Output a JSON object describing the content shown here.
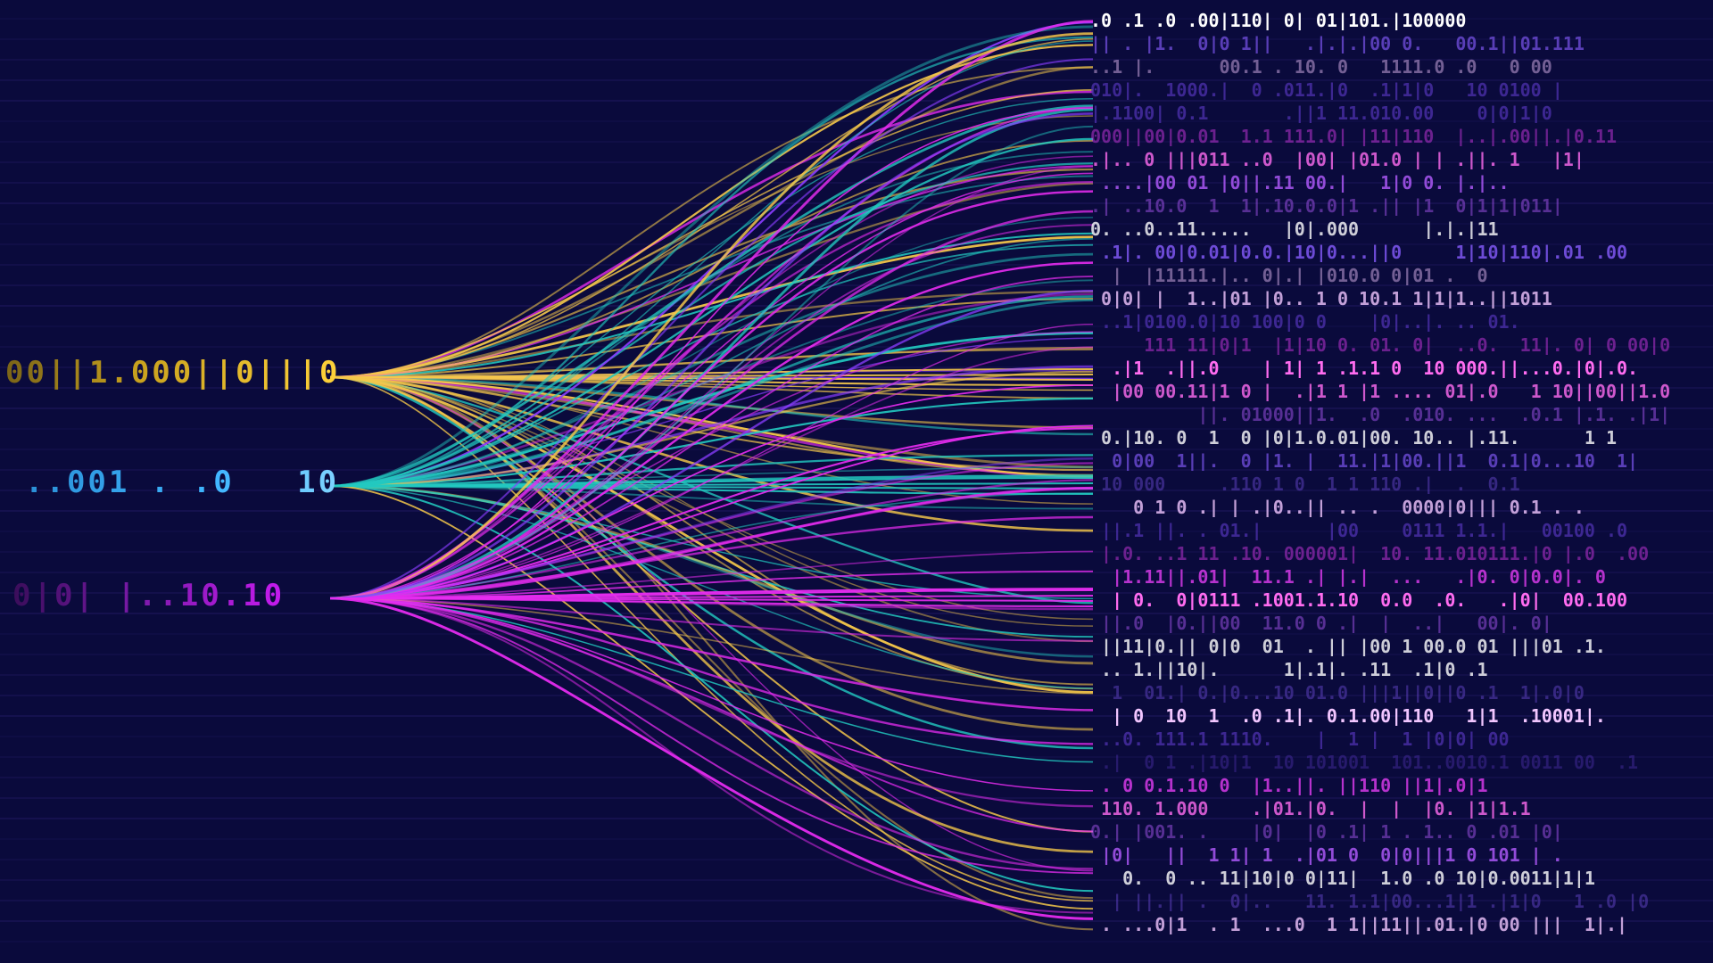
{
  "sources": [
    {
      "key": "yellow",
      "text": "00||1.000||0|||0",
      "color": "#ffd23a"
    },
    {
      "key": "cyan",
      "text": "..001 . .0   10",
      "color": "#3fb6ff"
    },
    {
      "key": "magenta",
      "text": "0|0| |..10.10",
      "color": "#c71bf0"
    }
  ],
  "colors": {
    "background": "#0a0a3c",
    "yellow": "#f5c84a",
    "cyan": "#22c9c0",
    "magenta": "#e62cf0",
    "violet": "#8a3dff"
  },
  "code_rows": [
    ".0 .1 .0 .00|110| 0| 01|101.|100000",
    "|| . |1.  0|0 1||   .|.|.|00 0.   00.1||01.111",
    "..1 |.      00.1 . 10. 0   1111.0 .0   0 00",
    "010|.  1000.|  0 .011.|0  .1|1|0   10 0100 |",
    "|.1100| 0.1       .||1 11.010.00    0|0|1|0",
    "000||00|0.01  1.1 111.0| |11|110  |..|.00||.|0.11",
    ".|.. 0 |||011 ..0  |00| |01.0 | | .||. 1   |1|",
    " ....|00 01 |0||.11 00.|   1|0 0. |.|..",
    ".| ..10.0  1  1|.10.0.0|1 .|| |1  0|1|1|011|",
    "0. ..0..11.....   |0|.000      |.|.|11",
    " .1|. 00|0.01|0.0.|10|0...||0     1|10|110|.01 .00",
    "  |  |11111.|.. 0|.| |010.0 0|01 .  0",
    " 0|0| |  1..|01 |0.. 1 0 10.1 1|1|1..||1011",
    " ..1|0100.0|10 100|0 0    |0|..|. .. 01.",
    "     111 11|0|1  |1|10 0. 01. 0|  ..0.  11|. 0| 0 00|0",
    "  .|1  .||.0    | 1| 1 .1.1 0  10 000.||...0.|0|.0.",
    "  |00 00.11|1 0 |  .|1 1 |1 .... 01|.0   1 10||00||1.0",
    "          ||. 01000||1.  .0  .010. ...  .0.1 |.1. .|1|",
    " 0.|10. 0  1  0 |0|1.0.01|00. 10.. |.11.      1 1",
    "  0|00  1||.  0 |1. |  11.|1|00.||1  0.1|0...10  1|",
    " 10 000     .110 1 0  1 1 110 .|  .  0.1",
    "    0 1 0 .| | .|0..|| .. .  0000|0||| 0.1 . .",
    " ||.1 ||. . 01.|      |00    0111 1.1.|   00100 .0",
    " |.0. ..1 11 .10. 000001|  10. 11.010111.|0 |.0  .00",
    "  |1.11||.01|  11.1 .| |.|  ...   .|0. 0|0.0|. 0",
    "  | 0.  0|0111 .1001.1.10  0.0  .0.   .|0|  00.100",
    " ||.0  |0.||00  11.0 0 .|  |  ..|   00|. 0|",
    " ||11|0.|| 0|0  01  . || |00 1 00.0 01 |||01 .1.",
    " .. 1.||10|.      1|.1|. .11  .1|0 .1",
    "  1  01.| 0.|0...10 01.0 |||1||0||0 .1  1|.0|0",
    "  | 0  10  1  .0 .1|. 0.1.00|110   1|1  .10001|.",
    " ..0. 111.1 1110.    |  1 |  1 |0|0| 00",
    " .|  0 1 .|10|1  10 101001  101..0010.1 0011 00  .1",
    " . 0 0.1.10 0  |1..||. ||110 ||1|.0|1",
    " 110. 1.000    .|01.|0.  |  |  |0. |1|1.1",
    "0.| |001. .    |0|  |0 .1| 1 . 1.. 0 .01 |0|",
    " |0|   ||  1 1| 1  .|01 0  0|0|||1 0 101 | .",
    "   0.  0 .. 11|10|0 0|11|  1.0 .0 10|0.0011|1|1",
    "  | ||.|| .  0|..   11. 1.1|00...1|1 .|1|0   1 .0 |0",
    " . ...0|1  . 1  ...0  1 1||11||.01.|0 00 |||  1|.|"
  ]
}
